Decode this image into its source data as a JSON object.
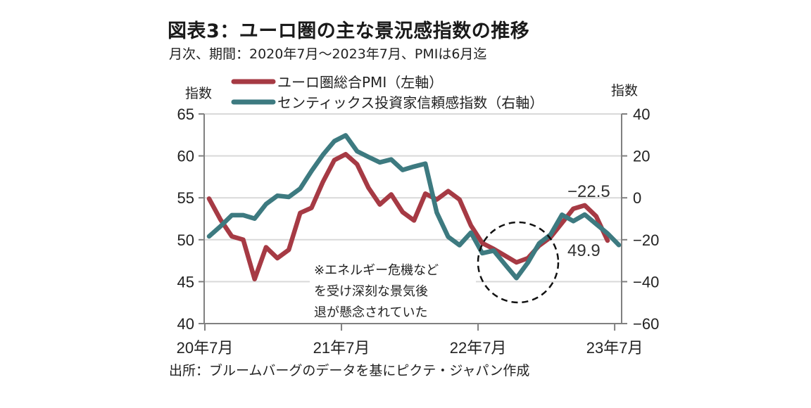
{
  "header": {
    "title": "図表3：ユーロ圏の主な景況感指数の推移",
    "subtitle": "月次、期間：2020年7月～2023年7月、PMIは6月迄"
  },
  "footer": {
    "source": "出所：ブルームバーグのデータを基にピクテ・ジャパン作成"
  },
  "chart_data": {
    "type": "line",
    "title": "図表3：ユーロ圏の主な景況感指数の推移",
    "subtitle": "月次、期間：2020年7月～2023年7月、PMIは6月迄",
    "xlabel": "",
    "ylabel_left": "指数",
    "ylabel_right": "指数",
    "x": [
      "2020-07",
      "2020-08",
      "2020-09",
      "2020-10",
      "2020-11",
      "2020-12",
      "2021-01",
      "2021-02",
      "2021-03",
      "2021-04",
      "2021-05",
      "2021-06",
      "2021-07",
      "2021-08",
      "2021-09",
      "2021-10",
      "2021-11",
      "2021-12",
      "2022-01",
      "2022-02",
      "2022-03",
      "2022-04",
      "2022-05",
      "2022-06",
      "2022-07",
      "2022-08",
      "2022-09",
      "2022-10",
      "2022-11",
      "2022-12",
      "2023-01",
      "2023-02",
      "2023-03",
      "2023-04",
      "2023-05",
      "2023-06",
      "2023-07"
    ],
    "x_tick_labels": [
      "20年7月",
      "21年7月",
      "22年7月",
      "23年7月"
    ],
    "x_tick_indices": [
      0,
      12,
      24,
      36
    ],
    "ylim_left": [
      40,
      65
    ],
    "yticks_left": [
      "65",
      "60",
      "55",
      "50",
      "45",
      "40"
    ],
    "yticks_left_values": [
      65,
      60,
      55,
      50,
      45,
      40
    ],
    "ylim_right": [
      -60,
      40
    ],
    "yticks_right": [
      "40",
      "20",
      "0",
      "-20",
      "-40",
      "-60"
    ],
    "yticks_right_values": [
      40,
      20,
      0,
      -20,
      -40,
      -60
    ],
    "grid": true,
    "legend_position": "top",
    "series": [
      {
        "name": "ユーロ圏総合PMI（左軸）",
        "axis": "left",
        "color": "#a63a44",
        "values": [
          54.9,
          52.4,
          50.4,
          50.0,
          45.3,
          49.1,
          47.8,
          48.8,
          53.2,
          53.8,
          56.9,
          59.5,
          60.2,
          59.0,
          56.2,
          54.2,
          55.4,
          53.3,
          52.3,
          55.5,
          54.8,
          55.8,
          54.8,
          51.7,
          49.6,
          48.9,
          48.1,
          47.3,
          47.8,
          49.3,
          50.3,
          52.0,
          53.7,
          54.1,
          52.8,
          49.9,
          null
        ]
      },
      {
        "name": "センティックス投資家信頼感指数（右軸）",
        "axis": "right",
        "color": "#3d7a80",
        "values": [
          -18.4,
          -13.6,
          -8.3,
          -8.3,
          -9.9,
          -3.0,
          1.0,
          0.4,
          4.4,
          12.8,
          20.5,
          27.0,
          29.8,
          22.2,
          19.5,
          16.9,
          18.3,
          13.3,
          14.9,
          16.3,
          -7.0,
          -18.6,
          -22.6,
          -16.6,
          -26.4,
          -25.2,
          -31.8,
          -38.3,
          -30.9,
          -21.7,
          -17.5,
          -8.1,
          -11.1,
          -8.0,
          -12.5,
          -17.0,
          -22.5
        ]
      }
    ],
    "annotations": {
      "note_lines": [
        "※エネルギー危機など",
        "を受け深刻な景気後",
        "退が懸念されていた"
      ],
      "last_sentix_label": "−22.5",
      "last_pmi_label": "49.9",
      "highlight": "dashed circle around 2022年10月 trough"
    }
  }
}
